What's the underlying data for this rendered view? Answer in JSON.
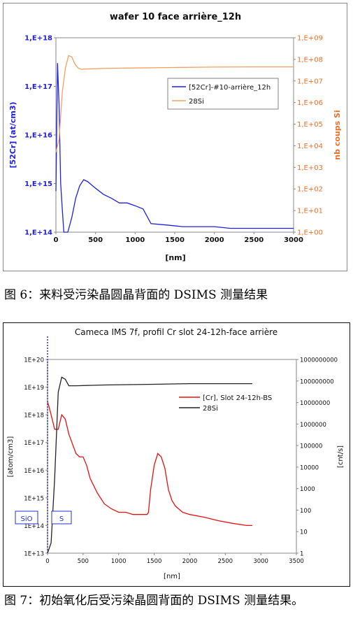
{
  "chart_data": [
    {
      "type": "line",
      "title": "wafer 10 face arrière_12h",
      "xlabel": "[nm]",
      "ylabel": "[52Cr] (at/cm3)",
      "y2label": "nb coups Si",
      "xlim": [
        0,
        3000
      ],
      "ylim": [
        100000000000000.0,
        1e+18
      ],
      "y2lim": [
        1,
        1000000000.0
      ],
      "y_scale": "log",
      "x_ticks": [
        "0",
        "500",
        "1000",
        "1500",
        "2000",
        "2500",
        "3000"
      ],
      "y_ticks": [
        "1,E+14",
        "1,E+15",
        "1,E+16",
        "1,E+17",
        "1,E+18"
      ],
      "y2_ticks": [
        "1,E+00",
        "1,E+01",
        "1,E+02",
        "1,E+03",
        "1,E+04",
        "1,E+05",
        "1,E+06",
        "1,E+07",
        "1,E+08",
        "1,E+09"
      ],
      "legend_position": "top-right",
      "colors": {
        "cr": "#2020e0",
        "si": "#f5a060",
        "left_axis": "#2020e0",
        "right_axis": "#e8702a"
      },
      "series": [
        {
          "name": "[52Cr]-#10-arrière_12h",
          "axis": "left",
          "x": [
            0,
            20,
            40,
            60,
            80,
            100,
            150,
            200,
            250,
            300,
            350,
            400,
            500,
            600,
            700,
            800,
            900,
            1000,
            1100,
            1200,
            1400,
            1600,
            1800,
            2000,
            2200,
            2400,
            2600,
            2800,
            3000
          ],
          "y": [
            700000000000000.0,
            3e+17,
            4e+16,
            1000000000000000.0,
            300000000000000.0,
            100000000000000.0,
            100000000000000.0,
            200000000000000.0,
            500000000000000.0,
            900000000000000.0,
            1200000000000000.0,
            1100000000000000.0,
            800000000000000.0,
            600000000000000.0,
            500000000000000.0,
            400000000000000.0,
            400000000000000.0,
            350000000000000.0,
            300000000000000.0,
            150000000000000.0,
            140000000000000.0,
            130000000000000.0,
            130000000000000.0,
            130000000000000.0,
            120000000000000.0,
            120000000000000.0,
            120000000000000.0,
            120000000000000.0,
            120000000000000.0
          ]
        },
        {
          "name": "28Si",
          "axis": "right",
          "x": [
            0,
            40,
            80,
            120,
            160,
            200,
            240,
            280,
            320,
            400,
            600,
            1000,
            1500,
            2000,
            2500,
            3000
          ],
          "y": [
            5000.0,
            20000.0,
            3000000.0,
            40000000.0,
            150000000.0,
            130000000.0,
            60000000.0,
            40000000.0,
            35000000.0,
            36000000.0,
            38000000.0,
            40000000.0,
            42000000.0,
            44000000.0,
            45000000.0,
            45000000.0
          ]
        }
      ]
    },
    {
      "type": "line",
      "title": "Cameca IMS 7f, profil Cr slot 24-12h-face arrière",
      "xlabel": "[nm]",
      "ylabel": "[atom/cm3]",
      "y2label": "[cnt/s]",
      "xlim": [
        0,
        3500
      ],
      "ylim": [
        10000000000000.0,
        1e+20
      ],
      "y2lim": [
        1,
        1000000000.0
      ],
      "y_scale": "log",
      "x_ticks": [
        "0",
        "500",
        "1000",
        "1500",
        "2000",
        "2500",
        "3000",
        "3500"
      ],
      "y_ticks": [
        "1E+13",
        "1E+14",
        "1E+15",
        "1E+16",
        "1E+17",
        "1E+18",
        "1E+19",
        "1E+20"
      ],
      "y2_ticks": [
        "1",
        "10",
        "100",
        "1000",
        "10000",
        "100000",
        "1000000",
        "10000000",
        "100000000",
        "1000000000"
      ],
      "legend_position": "top-right",
      "box_labels": [
        "SiO",
        "S"
      ],
      "colors": {
        "cr": "#e81010",
        "si": "#222222",
        "marker": "#2233cc"
      },
      "series": [
        {
          "name": "[Cr], Slot 24-12h-BS",
          "axis": "left",
          "x": [
            0,
            20,
            50,
            100,
            150,
            200,
            250,
            300,
            400,
            450,
            500,
            550,
            600,
            700,
            800,
            900,
            1000,
            1100,
            1200,
            1300,
            1400,
            1420,
            1450,
            1500,
            1550,
            1600,
            1650,
            1700,
            1750,
            1800,
            1900,
            2000,
            2200,
            2400,
            2600,
            2800,
            2880
          ],
          "y": [
            3e+18,
            2e+18,
            1e+18,
            3e+17,
            3e+17,
            1e+18,
            7e+17,
            2e+17,
            4e+16,
            3e+16,
            3e+16,
            1.5e+16,
            5000000000000000.0,
            1500000000000000.0,
            600000000000000.0,
            400000000000000.0,
            300000000000000.0,
            300000000000000.0,
            250000000000000.0,
            250000000000000.0,
            250000000000000.0,
            300000000000000.0,
            2000000000000000.0,
            1.5e+16,
            4e+16,
            3e+16,
            1.2e+16,
            2000000000000000.0,
            800000000000000.0,
            500000000000000.0,
            300000000000000.0,
            250000000000000.0,
            200000000000000.0,
            150000000000000.0,
            120000000000000.0,
            100000000000000.0,
            100000000000000.0
          ]
        },
        {
          "name": "28Si",
          "axis": "right",
          "x": [
            0,
            50,
            100,
            150,
            200,
            250,
            300,
            400,
            800,
            1500,
            2000,
            2500,
            2880
          ],
          "y": [
            1,
            3,
            3000.0,
            30000000.0,
            150000000.0,
            120000000.0,
            60000000.0,
            60000000.0,
            65000000.0,
            70000000.0,
            75000000.0,
            75000000.0,
            75000000.0
          ]
        }
      ]
    }
  ],
  "captions": [
    "图 6：来料受污染晶圆晶背面的 DSIMS 测量结果",
    "图 7：初始氧化后受污染晶圆背面的 DSIMS 测量结果。"
  ]
}
